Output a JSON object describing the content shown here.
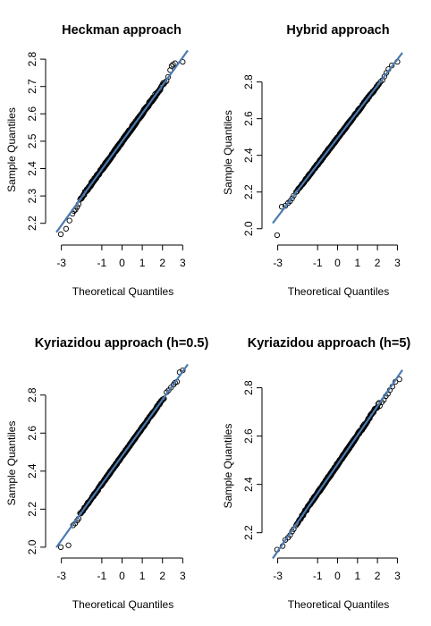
{
  "chart_data": [
    {
      "type": "scatter",
      "title": "Heckman approach",
      "xlabel": "Theoretical Quantiles",
      "ylabel": "Sample Quantiles",
      "xticks": [
        "-3",
        "-1",
        "0",
        "1",
        "2",
        "3"
      ],
      "yticks": [
        "2.2",
        "2.3",
        "2.4",
        "2.5",
        "2.6",
        "2.7",
        "2.8"
      ],
      "xlim": [
        -3.25,
        3.25
      ],
      "ylim": [
        2.15,
        2.82
      ],
      "qq_line": {
        "intercept": 2.4995,
        "slope": 0.1023,
        "color": "#4a7ab0"
      },
      "tail_points": [
        {
          "x": -3.03,
          "y": 2.16
        },
        {
          "x": -2.77,
          "y": 2.18
        },
        {
          "x": -2.6,
          "y": 2.21
        },
        {
          "x": -2.45,
          "y": 2.235
        },
        {
          "x": -2.38,
          "y": 2.245
        },
        {
          "x": -2.3,
          "y": 2.25
        },
        {
          "x": -2.22,
          "y": 2.26
        },
        {
          "x": -2.15,
          "y": 2.27
        },
        {
          "x": 2.12,
          "y": 2.715
        },
        {
          "x": 2.2,
          "y": 2.72
        },
        {
          "x": 2.28,
          "y": 2.735
        },
        {
          "x": 2.38,
          "y": 2.76
        },
        {
          "x": 2.45,
          "y": 2.775
        },
        {
          "x": 2.52,
          "y": 2.78
        },
        {
          "x": 2.62,
          "y": 2.785
        },
        {
          "x": 3.0,
          "y": 2.79
        }
      ],
      "body_range": [
        -2.1,
        2.1
      ],
      "point_count": 500
    },
    {
      "type": "scatter",
      "title": "Hybrid approach",
      "xlabel": "Theoretical Quantiles",
      "ylabel": "Sample Quantiles",
      "xticks": [
        "-3",
        "-1",
        "0",
        "1",
        "2",
        "3"
      ],
      "yticks": [
        "2.0",
        "2.2",
        "2.4",
        "2.6",
        "2.8"
      ],
      "xlim": [
        -3.25,
        3.25
      ],
      "ylim": [
        1.95,
        2.93
      ],
      "qq_line": {
        "intercept": 2.4945,
        "slope": 0.143,
        "color": "#4a7ab0"
      },
      "tail_points": [
        {
          "x": -3.03,
          "y": 1.965
        },
        {
          "x": -2.8,
          "y": 2.12
        },
        {
          "x": -2.62,
          "y": 2.125
        },
        {
          "x": -2.48,
          "y": 2.14
        },
        {
          "x": -2.38,
          "y": 2.15
        },
        {
          "x": -2.28,
          "y": 2.165
        },
        {
          "x": -2.2,
          "y": 2.18
        },
        {
          "x": 2.15,
          "y": 2.8
        },
        {
          "x": 2.25,
          "y": 2.81
        },
        {
          "x": 2.35,
          "y": 2.83
        },
        {
          "x": 2.45,
          "y": 2.85
        },
        {
          "x": 2.55,
          "y": 2.87
        },
        {
          "x": 2.72,
          "y": 2.89
        },
        {
          "x": 3.0,
          "y": 2.91
        }
      ],
      "body_range": [
        -2.1,
        2.1
      ],
      "point_count": 500
    },
    {
      "type": "scatter",
      "title": "Kyriazidou approach (h=0.5)",
      "xlabel": "Theoretical Quantiles",
      "ylabel": "Sample Quantiles",
      "xticks": [
        "-3",
        "-1",
        "0",
        "1",
        "2",
        "3"
      ],
      "yticks": [
        "2.0",
        "2.2",
        "2.4",
        "2.6",
        "2.8"
      ],
      "xlim": [
        -3.25,
        3.25
      ],
      "ylim": [
        1.99,
        2.94
      ],
      "qq_line": {
        "intercept": 2.48,
        "slope": 0.148,
        "color": "#4a7ab0"
      },
      "tail_points": [
        {
          "x": -3.03,
          "y": 2.0
        },
        {
          "x": -2.65,
          "y": 2.01
        },
        {
          "x": -2.42,
          "y": 2.115
        },
        {
          "x": -2.32,
          "y": 2.125
        },
        {
          "x": -2.22,
          "y": 2.14
        },
        {
          "x": -2.15,
          "y": 2.15
        },
        {
          "x": 2.2,
          "y": 2.815
        },
        {
          "x": 2.3,
          "y": 2.825
        },
        {
          "x": 2.42,
          "y": 2.84
        },
        {
          "x": 2.55,
          "y": 2.855
        },
        {
          "x": 2.62,
          "y": 2.865
        },
        {
          "x": 2.72,
          "y": 2.87
        },
        {
          "x": 2.85,
          "y": 2.92
        },
        {
          "x": 3.0,
          "y": 2.93
        }
      ],
      "body_range": [
        -2.1,
        2.1
      ],
      "point_count": 500
    },
    {
      "type": "scatter",
      "title": "Kyriazidou approach (h=5)",
      "xlabel": "Theoretical Quantiles",
      "ylabel": "Sample Quantiles",
      "xticks": [
        "-3",
        "-1",
        "0",
        "1",
        "2",
        "3"
      ],
      "yticks": [
        "2.2",
        "2.4",
        "2.6",
        "2.8"
      ],
      "xlim": [
        -3.25,
        3.25
      ],
      "ylim": [
        2.11,
        2.88
      ],
      "qq_line": {
        "intercept": 2.4835,
        "slope": 0.12,
        "color": "#4a7ab0"
      },
      "tail_points": [
        {
          "x": -3.03,
          "y": 2.13
        },
        {
          "x": -2.75,
          "y": 2.145
        },
        {
          "x": -2.62,
          "y": 2.17
        },
        {
          "x": -2.48,
          "y": 2.18
        },
        {
          "x": -2.38,
          "y": 2.19
        },
        {
          "x": -2.28,
          "y": 2.205
        },
        {
          "x": -2.2,
          "y": 2.215
        },
        {
          "x": 2.12,
          "y": 2.725
        },
        {
          "x": 2.22,
          "y": 2.74
        },
        {
          "x": 2.32,
          "y": 2.75
        },
        {
          "x": 2.42,
          "y": 2.765
        },
        {
          "x": 2.52,
          "y": 2.775
        },
        {
          "x": 2.62,
          "y": 2.79
        },
        {
          "x": 2.75,
          "y": 2.805
        },
        {
          "x": 2.9,
          "y": 2.825
        },
        {
          "x": 3.1,
          "y": 2.835
        }
      ],
      "body_range": [
        -2.1,
        2.1
      ],
      "point_count": 500
    }
  ]
}
